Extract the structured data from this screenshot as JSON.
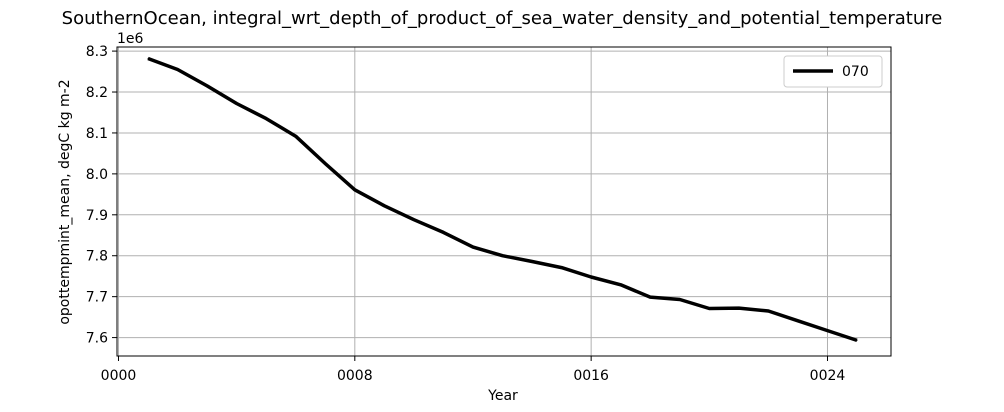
{
  "chart_data": {
    "type": "line",
    "title": "SouthernOcean, integral_wrt_depth_of_product_of_sea_water_density_and_potential_temperature",
    "xlabel": "Year",
    "ylabel": "opottempmint_mean, degC kg m-2",
    "y_offset_label": "1e6",
    "x_tick_labels": [
      "0000",
      "0008",
      "0016",
      "0024"
    ],
    "x_ticks": [
      0,
      8,
      16,
      24
    ],
    "y_tick_labels": [
      "7.6",
      "7.7",
      "7.8",
      "7.9",
      "8.0",
      "8.1",
      "8.2",
      "8.3"
    ],
    "y_ticks": [
      7.6,
      7.7,
      7.8,
      7.9,
      8.0,
      8.1,
      8.2,
      8.3
    ],
    "xlim": [
      -0.05,
      26.15
    ],
    "ylim": [
      7.555,
      8.31
    ],
    "grid": true,
    "legend_position": "upper right",
    "series": [
      {
        "name": "070",
        "color": "#000000",
        "x": [
          1,
          2,
          3,
          4,
          5,
          6,
          7,
          8,
          9,
          10,
          11,
          12,
          13,
          14,
          15,
          16,
          17,
          18,
          19,
          20,
          21,
          22,
          23,
          24,
          25
        ],
        "values": [
          8.282,
          8.255,
          8.215,
          8.172,
          8.135,
          8.092,
          8.025,
          7.961,
          7.922,
          7.888,
          7.857,
          7.821,
          7.8,
          7.786,
          7.771,
          7.748,
          7.729,
          7.699,
          7.693,
          7.671,
          7.672,
          7.665,
          7.641,
          7.617,
          7.593
        ]
      }
    ]
  }
}
